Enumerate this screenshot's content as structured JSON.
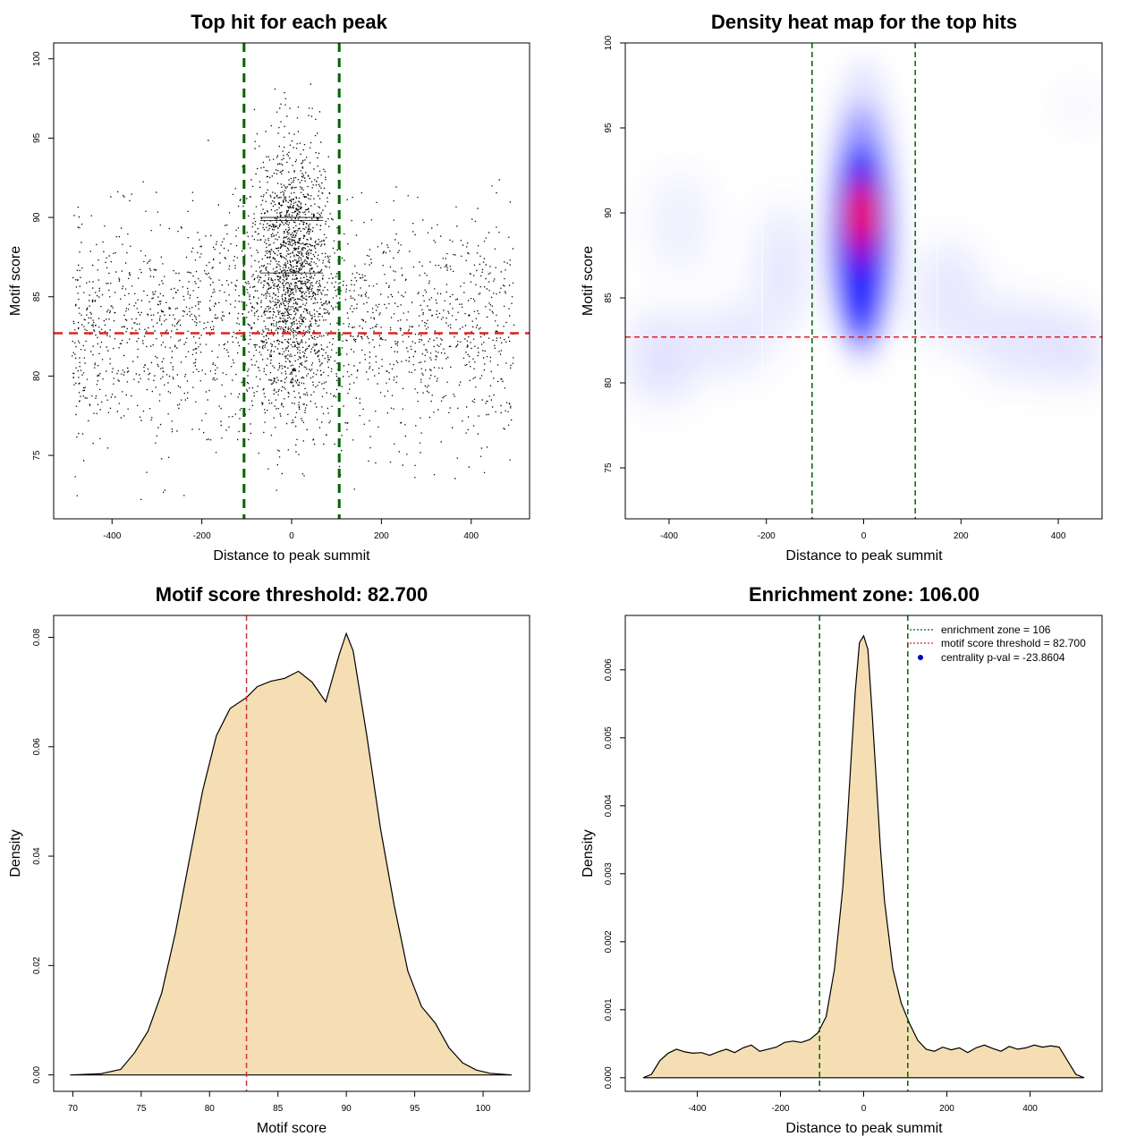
{
  "figure": "motif centrality analysis",
  "chart_data": [
    {
      "id": "scatter",
      "type": "scatter",
      "title": "Top hit for each peak",
      "xlabel": "Distance to peak summit",
      "ylabel": "Motif score",
      "xlim": [
        -530,
        530
      ],
      "ylim": [
        71,
        101
      ],
      "xticks": [
        -400,
        -200,
        0,
        200,
        400
      ],
      "yticks": [
        75,
        80,
        85,
        90,
        95,
        100
      ],
      "vlines": [
        -106,
        106
      ],
      "vline_color": "#006400",
      "hline": 82.7,
      "hline_color": "#dd2222",
      "point_count": 3600,
      "point_color": "#000000"
    },
    {
      "id": "heatmap",
      "type": "heatmap",
      "title": "Density heat map for the top hits",
      "xlabel": "Distance to peak summit",
      "ylabel": "Motif score",
      "xlim": [
        -490,
        490
      ],
      "ylim": [
        72,
        100
      ],
      "xticks": [
        -400,
        -200,
        0,
        200,
        400
      ],
      "yticks": [
        75,
        80,
        85,
        90,
        95,
        100
      ],
      "vlines": [
        -106,
        106
      ],
      "vline_color": "#006400",
      "hline": 82.7,
      "hline_color": "#dd2222",
      "hotspot": {
        "x": 0,
        "y": 89.8
      },
      "color_scale": [
        "#ffffff",
        "#0000ff",
        "#ff0000"
      ]
    },
    {
      "id": "score-density",
      "type": "area",
      "title": "Motif score threshold: 82.700",
      "xlabel": "Motif score",
      "ylabel": "Density",
      "xlim": [
        68.6,
        103.4
      ],
      "ylim": [
        -0.003,
        0.084
      ],
      "xticks": [
        70,
        75,
        80,
        85,
        90,
        95,
        100
      ],
      "yticks": [
        0.0,
        0.02,
        0.04,
        0.06,
        0.08
      ],
      "ytick_labels": [
        "0.00",
        "0.02",
        "0.04",
        "0.06",
        "0.08"
      ],
      "fill_color": "#f5deb3",
      "vline": 82.7,
      "vline_color": "#cc3333",
      "x": [
        69.8,
        72,
        73.5,
        74.5,
        75.5,
        76.5,
        77.5,
        78.5,
        79.5,
        80.5,
        81.5,
        82.7,
        83.5,
        84.5,
        85.5,
        86.5,
        87.5,
        88.5,
        89.5,
        90.0,
        90.5,
        91.5,
        92.5,
        93.5,
        94.5,
        95.5,
        96.5,
        97.5,
        98.5,
        99.5,
        100.5,
        102.1
      ],
      "values": [
        0.0,
        0.0002,
        0.001,
        0.004,
        0.008,
        0.015,
        0.026,
        0.039,
        0.052,
        0.062,
        0.067,
        0.069,
        0.071,
        0.072,
        0.0725,
        0.0738,
        0.0718,
        0.0682,
        0.077,
        0.0807,
        0.0775,
        0.062,
        0.045,
        0.031,
        0.019,
        0.0125,
        0.0095,
        0.005,
        0.0022,
        0.0009,
        0.0003,
        0.0
      ]
    },
    {
      "id": "distance-density",
      "type": "area",
      "title": "Enrichment zone: 106.00",
      "xlabel": "Distance to peak summit",
      "ylabel": "Density",
      "xlim": [
        -573,
        573
      ],
      "ylim": [
        -0.0002,
        0.0068
      ],
      "xticks": [
        -400,
        -200,
        0,
        200,
        400
      ],
      "yticks": [
        0.0,
        0.001,
        0.002,
        0.003,
        0.004,
        0.005,
        0.006
      ],
      "ytick_labels": [
        "0.000",
        "0.001",
        "0.002",
        "0.003",
        "0.004",
        "0.005",
        "0.006"
      ],
      "fill_color": "#f5deb3",
      "vlines": [
        -106,
        106
      ],
      "vline_color": "#006400",
      "x": [
        -530,
        -510,
        -490,
        -470,
        -450,
        -430,
        -410,
        -390,
        -370,
        -350,
        -330,
        -310,
        -290,
        -270,
        -250,
        -230,
        -210,
        -190,
        -170,
        -150,
        -130,
        -110,
        -90,
        -70,
        -50,
        -40,
        -30,
        -20,
        -10,
        0,
        10,
        20,
        30,
        40,
        50,
        70,
        90,
        110,
        130,
        150,
        170,
        190,
        210,
        230,
        250,
        270,
        290,
        310,
        330,
        350,
        370,
        390,
        410,
        430,
        450,
        470,
        490,
        510,
        530
      ],
      "values": [
        0.0,
        5e-05,
        0.00025,
        0.00036,
        0.00042,
        0.00038,
        0.00036,
        0.00037,
        0.00033,
        0.00038,
        0.00042,
        0.00037,
        0.00044,
        0.00048,
        0.00039,
        0.00042,
        0.00045,
        0.00052,
        0.00054,
        0.00052,
        0.00056,
        0.00066,
        0.0009,
        0.0016,
        0.0028,
        0.0037,
        0.0047,
        0.0057,
        0.0064,
        0.0065,
        0.0063,
        0.0054,
        0.0044,
        0.0034,
        0.0026,
        0.0016,
        0.0011,
        0.0008,
        0.00055,
        0.00042,
        0.00039,
        0.00045,
        0.00041,
        0.00044,
        0.00037,
        0.00044,
        0.00048,
        0.00043,
        0.00039,
        0.00046,
        0.00042,
        0.00044,
        0.00048,
        0.00045,
        0.00047,
        0.00045,
        0.00025,
        5e-05,
        0.0
      ],
      "legend": [
        {
          "label": "enrichment zone = 106",
          "style": "dotted-line",
          "color": "#006400"
        },
        {
          "label": "motif score threshold = 82.700",
          "style": "dotted-line",
          "color": "#dd2222"
        },
        {
          "label": "centrality p-val = -23.8604",
          "style": "dot",
          "color": "#0000cc"
        }
      ],
      "legend_position": "top-right"
    }
  ]
}
